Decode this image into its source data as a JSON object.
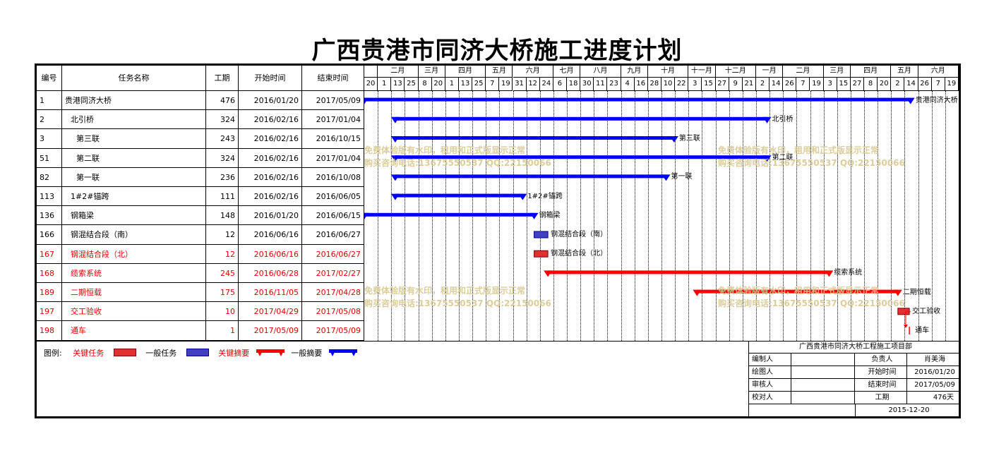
{
  "title": "广西贵港市同济大桥施工进度计划",
  "table": {
    "headers": {
      "id": "编号",
      "name": "任务名称",
      "duration": "工期",
      "start": "开始时间",
      "end": "结束时间"
    },
    "rows": [
      {
        "id": "1",
        "name": "贵港同济大桥",
        "indent": 1,
        "duration": "476",
        "start": "2016/01/20",
        "end": "2017/05/09",
        "critical": false
      },
      {
        "id": "2",
        "name": "北引桥",
        "indent": 2,
        "duration": "324",
        "start": "2016/02/16",
        "end": "2017/01/04",
        "critical": false
      },
      {
        "id": "3",
        "name": "第三联",
        "indent": 3,
        "duration": "243",
        "start": "2016/02/16",
        "end": "2016/10/15",
        "critical": false
      },
      {
        "id": "51",
        "name": "第二联",
        "indent": 3,
        "duration": "324",
        "start": "2016/02/16",
        "end": "2017/01/04",
        "critical": false
      },
      {
        "id": "82",
        "name": "第一联",
        "indent": 3,
        "duration": "236",
        "start": "2016/02/16",
        "end": "2016/10/08",
        "critical": false
      },
      {
        "id": "113",
        "name": "1#2#锚跨",
        "indent": 2,
        "duration": "111",
        "start": "2016/02/16",
        "end": "2016/06/05",
        "critical": false
      },
      {
        "id": "136",
        "name": "钢箱梁",
        "indent": 2,
        "duration": "148",
        "start": "2016/01/20",
        "end": "2016/06/15",
        "critical": false
      },
      {
        "id": "166",
        "name": "钢混结合段（南）",
        "indent": 2,
        "duration": "12",
        "start": "2016/06/16",
        "end": "2016/06/27",
        "critical": false
      },
      {
        "id": "167",
        "name": "钢混结合段（北）",
        "indent": 2,
        "duration": "12",
        "start": "2016/06/16",
        "end": "2016/06/27",
        "critical": true
      },
      {
        "id": "168",
        "name": "缆索系统",
        "indent": 2,
        "duration": "245",
        "start": "2016/06/28",
        "end": "2017/02/27",
        "critical": true
      },
      {
        "id": "189",
        "name": "二期恒载",
        "indent": 2,
        "duration": "175",
        "start": "2016/11/05",
        "end": "2017/04/28",
        "critical": true
      },
      {
        "id": "197",
        "name": "交工验收",
        "indent": 2,
        "duration": "10",
        "start": "2017/04/29",
        "end": "2017/05/08",
        "critical": true
      },
      {
        "id": "198",
        "name": "通车",
        "indent": 2,
        "duration": "1",
        "start": "2017/05/09",
        "end": "2017/05/09",
        "critical": true
      }
    ]
  },
  "timeline": {
    "months": [
      "二月",
      "三月",
      "四月",
      "五月",
      "六月",
      "七月",
      "八月",
      "九月",
      "十月",
      "十一月",
      "十二月",
      "一月",
      "二月",
      "三月",
      "四月",
      "五月",
      "六月"
    ],
    "days": [
      "20",
      "1",
      "13",
      "25",
      "8",
      "20",
      "1",
      "13",
      "25",
      "7",
      "19",
      "31",
      "12",
      "24",
      "6",
      "18",
      "30",
      "11",
      "23",
      "4",
      "16",
      "28",
      "10",
      "22",
      "3",
      "15",
      "27",
      "9",
      "21",
      "2",
      "14",
      "26",
      "7",
      "19",
      "3",
      "15",
      "27",
      "8",
      "20",
      "2",
      "14",
      "26",
      "7",
      "19"
    ]
  },
  "colors": {
    "summary": "#0000ff",
    "critical": "#ff0000",
    "task_fill": "#4040c0",
    "crit_fill": "#e03030",
    "critical_text": "#e00000"
  },
  "watermark": {
    "line1": "免费体验版有水印，租用和正式版显示正常",
    "line2": "购买咨询电话:13675550537 QQ:22150066"
  },
  "legend": {
    "label": "图例:",
    "critical_task": "关键任务",
    "normal_task": "一般任务",
    "critical_summary": "关键摘要",
    "normal_summary": "一般摘要"
  },
  "info": {
    "org": "广西贵港市同济大桥工程施工项目部",
    "editor_label": "编制人",
    "editor_value": "",
    "owner_label": "负责人",
    "owner_value": "肖美海",
    "drawer_label": "绘图人",
    "drawer_value": "",
    "start_label": "开始时间",
    "start_value": "2016/01/20",
    "reviewer_label": "审核人",
    "reviewer_value": "",
    "end_label": "结束时间",
    "end_value": "2017/05/09",
    "checker_label": "校对人",
    "checker_value": "",
    "duration_label": "工期",
    "duration_value": "476天",
    "date": "2015-12-20"
  },
  "chart_data": {
    "type": "gantt",
    "title": "广西贵港市同济大桥施工进度计划",
    "x_axis": {
      "type": "date",
      "range": [
        "2016-01-20",
        "2017-06-21"
      ]
    },
    "tasks": [
      {
        "name": "贵港同济大桥",
        "start": "2016-01-20",
        "end": "2017-05-09",
        "kind": "summary",
        "critical": false
      },
      {
        "name": "北引桥",
        "start": "2016-02-16",
        "end": "2017-01-04",
        "kind": "summary",
        "critical": false
      },
      {
        "name": "第三联",
        "start": "2016-02-16",
        "end": "2016-10-15",
        "kind": "summary",
        "critical": false
      },
      {
        "name": "第二联",
        "start": "2016-02-16",
        "end": "2017-01-04",
        "kind": "summary",
        "critical": false
      },
      {
        "name": "第一联",
        "start": "2016-02-16",
        "end": "2016-10-08",
        "kind": "summary",
        "critical": false
      },
      {
        "name": "1#2#锚跨",
        "start": "2016-02-16",
        "end": "2016-06-05",
        "kind": "summary",
        "critical": false
      },
      {
        "name": "钢箱梁",
        "start": "2016-01-20",
        "end": "2016-06-15",
        "kind": "summary",
        "critical": false
      },
      {
        "name": "钢混结合段（南）",
        "start": "2016-06-16",
        "end": "2016-06-27",
        "kind": "task",
        "critical": false
      },
      {
        "name": "钢混结合段（北）",
        "start": "2016-06-16",
        "end": "2016-06-27",
        "kind": "task",
        "critical": true
      },
      {
        "name": "缆索系统",
        "start": "2016-06-28",
        "end": "2017-02-27",
        "kind": "summary",
        "critical": true
      },
      {
        "name": "二期恒载",
        "start": "2016-11-05",
        "end": "2017-04-28",
        "kind": "summary",
        "critical": true
      },
      {
        "name": "交工验收",
        "start": "2017-04-29",
        "end": "2017-05-08",
        "kind": "task",
        "critical": true
      },
      {
        "name": "通车",
        "start": "2017-05-09",
        "end": "2017-05-09",
        "kind": "milestone",
        "critical": true
      }
    ]
  }
}
